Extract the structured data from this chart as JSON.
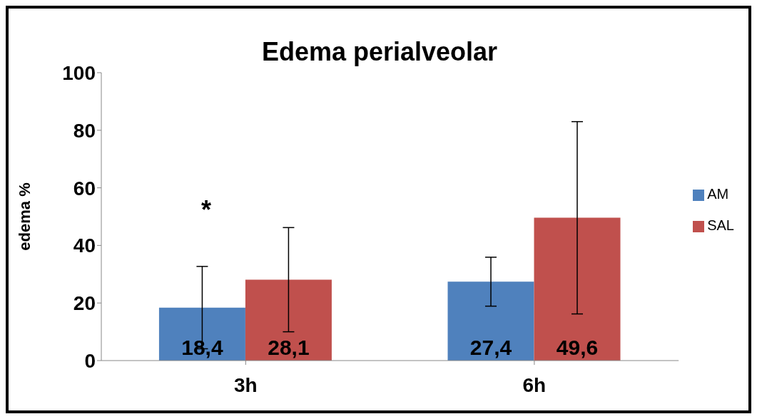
{
  "chart_data": {
    "type": "bar",
    "title": "Edema perialveolar",
    "ylabel": "edema %",
    "categories": [
      "3h",
      "6h"
    ],
    "series": [
      {
        "name": "AM",
        "color": "#4f81bd",
        "values": [
          18.4,
          27.4
        ],
        "errors": [
          14.3,
          8.5
        ],
        "value_labels": [
          "18,4",
          "27,4"
        ]
      },
      {
        "name": "SAL",
        "color": "#c0504d",
        "values": [
          28.1,
          49.6
        ],
        "errors": [
          18.1,
          33.4
        ],
        "value_labels": [
          "28,1",
          "49,6"
        ]
      }
    ],
    "ylim": [
      0,
      100
    ],
    "yticks": [
      0,
      20,
      40,
      60,
      80,
      100
    ],
    "grid": false,
    "legend": "right",
    "annotations": [
      "*"
    ]
  }
}
